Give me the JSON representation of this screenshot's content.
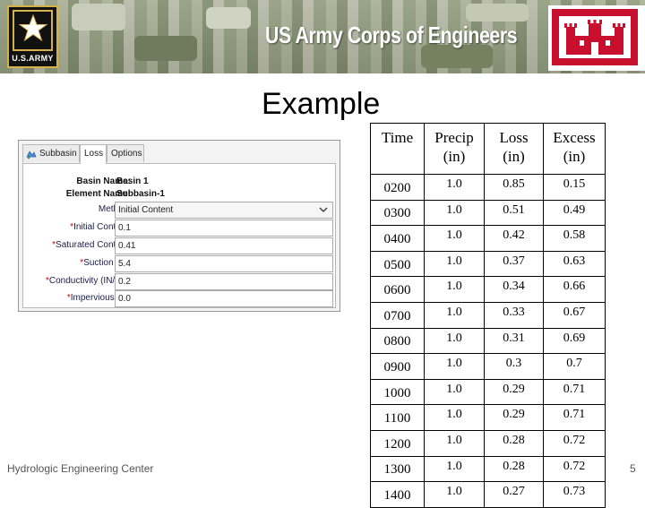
{
  "banner": {
    "army_caption": "U.S.ARMY",
    "title": "US Army Corps of Engineers",
    "colors": {
      "army_gold": "#d4b24a",
      "corps_red": "#c8102e"
    }
  },
  "slide": {
    "title": "Example",
    "footer": "Hydrologic Engineering Center",
    "page_number": "5"
  },
  "panel": {
    "tabs": [
      {
        "label": "Subbasin",
        "icon": "subbasin-icon",
        "active": false
      },
      {
        "label": "Loss",
        "active": true
      },
      {
        "label": "Options",
        "active": false
      }
    ],
    "basin_name_label": "Basin Name:",
    "basin_name_value": "Basin 1",
    "element_name_label": "Element Name:",
    "element_name_value": "Subbasin-1",
    "method_label": "Method:",
    "method_value": "Initial Content",
    "required_marker": "*",
    "fields": [
      {
        "label": "Initial Content:",
        "value": "0.1"
      },
      {
        "label": "Saturated Content:",
        "value": "0.41"
      },
      {
        "label": "Suction (IN)",
        "value": "5.4"
      },
      {
        "label": "Conductivity (IN/HR)",
        "value": "0.2"
      },
      {
        "label": "Impervious (%)",
        "value": "0.0"
      }
    ]
  },
  "table": {
    "headers": [
      {
        "line1": "Time",
        "line2": ""
      },
      {
        "line1": "Precip",
        "line2": "(in)"
      },
      {
        "line1": "Loss",
        "line2": "(in)"
      },
      {
        "line1": "Excess",
        "line2": "(in)"
      }
    ],
    "rows": [
      [
        "0200",
        "1.0",
        "0.85",
        "0.15"
      ],
      [
        "0300",
        "1.0",
        "0.51",
        "0.49"
      ],
      [
        "0400",
        "1.0",
        "0.42",
        "0.58"
      ],
      [
        "0500",
        "1.0",
        "0.37",
        "0.63"
      ],
      [
        "0600",
        "1.0",
        "0.34",
        "0.66"
      ],
      [
        "0700",
        "1.0",
        "0.33",
        "0.67"
      ],
      [
        "0800",
        "1.0",
        "0.31",
        "0.69"
      ],
      [
        "0900",
        "1.0",
        "0.3",
        "0.7"
      ],
      [
        "1000",
        "1.0",
        "0.29",
        "0.71"
      ],
      [
        "1100",
        "1.0",
        "0.29",
        "0.71"
      ],
      [
        "1200",
        "1.0",
        "0.28",
        "0.72"
      ],
      [
        "1300",
        "1.0",
        "0.28",
        "0.72"
      ],
      [
        "1400",
        "1.0",
        "0.27",
        "0.73"
      ]
    ]
  }
}
